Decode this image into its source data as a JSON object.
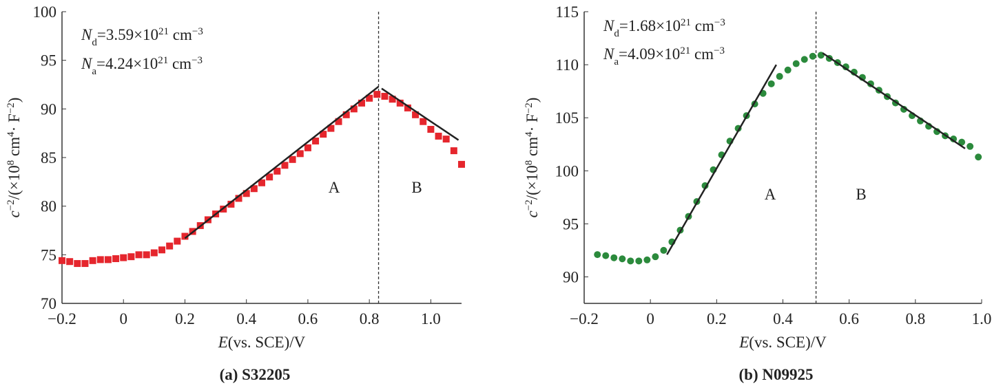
{
  "chart_data": [
    {
      "type": "scatter",
      "caption": "(a) S32205",
      "marker": "square",
      "color": "#e5262d",
      "xlabel": [
        {
          "text": "E",
          "style": "italic"
        },
        {
          "text": "(vs. SCE)/V"
        }
      ],
      "ylabel": [
        {
          "text": "c",
          "style": "italic"
        },
        {
          "text": "−2",
          "style": "sup"
        },
        {
          "text": "/(×10"
        },
        {
          "text": "8",
          "style": "sup"
        },
        {
          "text": " cm"
        },
        {
          "text": "4",
          "style": "sup"
        },
        {
          "text": "· F"
        },
        {
          "text": "−2",
          "style": "sup"
        },
        {
          "text": ")"
        }
      ],
      "annotations": [
        [
          {
            "text": "N",
            "style": "italic"
          },
          {
            "text": "d",
            "style": "sub"
          },
          {
            "text": "=3.59×10"
          },
          {
            "text": "21",
            "style": "sup"
          },
          {
            "text": " cm"
          },
          {
            "text": "−3",
            "style": "sup"
          }
        ],
        [
          {
            "text": "N",
            "style": "italic"
          },
          {
            "text": "a",
            "style": "sub"
          },
          {
            "text": "=4.24×10"
          },
          {
            "text": "21",
            "style": "sup"
          },
          {
            "text": " cm"
          },
          {
            "text": "−3",
            "style": "sup"
          }
        ]
      ],
      "region_labels": [
        "A",
        "B"
      ],
      "x": [
        -0.2,
        -0.175,
        -0.15,
        -0.125,
        -0.1,
        -0.075,
        -0.05,
        -0.025,
        0,
        0.025,
        0.05,
        0.075,
        0.1,
        0.125,
        0.15,
        0.175,
        0.2,
        0.225,
        0.25,
        0.275,
        0.3,
        0.325,
        0.35,
        0.375,
        0.4,
        0.425,
        0.45,
        0.475,
        0.5,
        0.525,
        0.55,
        0.575,
        0.6,
        0.625,
        0.65,
        0.675,
        0.7,
        0.725,
        0.75,
        0.775,
        0.8,
        0.825,
        0.85,
        0.875,
        0.9,
        0.925,
        0.95,
        0.975,
        1.0,
        1.025,
        1.05,
        1.075,
        1.1
      ],
      "values": [
        74.4,
        74.3,
        74.1,
        74.1,
        74.4,
        74.5,
        74.5,
        74.6,
        74.7,
        74.8,
        75.0,
        75.0,
        75.2,
        75.5,
        75.9,
        76.4,
        76.9,
        77.4,
        78.0,
        78.6,
        79.2,
        79.7,
        80.2,
        80.8,
        81.3,
        81.8,
        82.4,
        83.0,
        83.6,
        84.2,
        84.8,
        85.4,
        86.0,
        86.7,
        87.4,
        88.0,
        88.7,
        89.4,
        90.0,
        90.6,
        91.1,
        91.5,
        91.3,
        91.0,
        90.6,
        90.1,
        89.4,
        88.7,
        87.9,
        87.2,
        86.9,
        85.7,
        84.3
      ],
      "fits": [
        {
          "x": [
            0.2,
            0.83
          ],
          "y": [
            76.7,
            92.3
          ]
        },
        {
          "x": [
            0.84,
            1.09
          ],
          "y": [
            92.1,
            86.8
          ]
        }
      ],
      "vline": 0.83,
      "xlim": [
        -0.2,
        1.1
      ],
      "ylim": [
        70,
        100
      ],
      "xticks": [
        {
          "value": -0.2,
          "label": "−0.2"
        },
        0,
        0.2,
        0.4,
        0.6,
        0.8,
        {
          "value": 1.0,
          "label": "1.0"
        }
      ],
      "yticks": [
        70,
        75,
        80,
        85,
        90,
        95,
        100
      ]
    },
    {
      "type": "scatter",
      "caption": "(b) N09925",
      "marker": "circle",
      "color": "#2b8a3c",
      "xlabel": [
        {
          "text": "E",
          "style": "italic"
        },
        {
          "text": "(vs. SCE)/V"
        }
      ],
      "ylabel": [
        {
          "text": "c",
          "style": "italic"
        },
        {
          "text": "−2",
          "style": "sup"
        },
        {
          "text": "/(×10"
        },
        {
          "text": "8",
          "style": "sup"
        },
        {
          "text": " cm"
        },
        {
          "text": "4",
          "style": "sup"
        },
        {
          "text": "· F"
        },
        {
          "text": "−2",
          "style": "sup"
        },
        {
          "text": ")"
        }
      ],
      "annotations": [
        [
          {
            "text": "N",
            "style": "italic"
          },
          {
            "text": "d",
            "style": "sub"
          },
          {
            "text": "=1.68×10"
          },
          {
            "text": "21",
            "style": "sup"
          },
          {
            "text": " cm"
          },
          {
            "text": "−3",
            "style": "sup"
          }
        ],
        [
          {
            "text": "N",
            "style": "italic"
          },
          {
            "text": "a",
            "style": "sub"
          },
          {
            "text": "=4.09×10"
          },
          {
            "text": "21",
            "style": "sup"
          },
          {
            "text": " cm"
          },
          {
            "text": "−3",
            "style": "sup"
          }
        ]
      ],
      "region_labels": [
        "A",
        "B"
      ],
      "x": [
        -0.16,
        -0.135,
        -0.11,
        -0.085,
        -0.06,
        -0.035,
        -0.01,
        0.015,
        0.04,
        0.065,
        0.09,
        0.115,
        0.14,
        0.165,
        0.19,
        0.215,
        0.24,
        0.265,
        0.29,
        0.315,
        0.34,
        0.365,
        0.39,
        0.415,
        0.44,
        0.465,
        0.49,
        0.515,
        0.54,
        0.565,
        0.59,
        0.615,
        0.64,
        0.665,
        0.69,
        0.715,
        0.74,
        0.765,
        0.79,
        0.815,
        0.84,
        0.865,
        0.89,
        0.915,
        0.94,
        0.965,
        0.99
      ],
      "values": [
        92.1,
        92.0,
        91.8,
        91.7,
        91.5,
        91.5,
        91.6,
        91.9,
        92.5,
        93.3,
        94.4,
        95.7,
        97.1,
        98.6,
        100.1,
        101.5,
        102.8,
        104.0,
        105.2,
        106.3,
        107.3,
        108.2,
        108.9,
        109.5,
        110.1,
        110.5,
        110.8,
        110.9,
        110.6,
        110.2,
        109.8,
        109.3,
        108.8,
        108.2,
        107.6,
        107.0,
        106.4,
        105.8,
        105.2,
        104.7,
        104.2,
        103.7,
        103.3,
        103.0,
        102.7,
        102.3,
        101.3
      ],
      "fits": [
        {
          "x": [
            0.05,
            0.38
          ],
          "y": [
            92.1,
            110.0
          ]
        },
        {
          "x": [
            0.52,
            0.95
          ],
          "y": [
            111.1,
            102.1
          ]
        }
      ],
      "vline": 0.5,
      "xlim": [
        -0.2,
        1.0
      ],
      "ylim": [
        87.5,
        115
      ],
      "xticks": [
        {
          "value": -0.2,
          "label": "−0.2"
        },
        0,
        0.2,
        0.4,
        0.6,
        0.8,
        {
          "value": 1.0,
          "label": "1.0"
        }
      ],
      "yticks": [
        90,
        95,
        100,
        105,
        110,
        115
      ]
    }
  ]
}
